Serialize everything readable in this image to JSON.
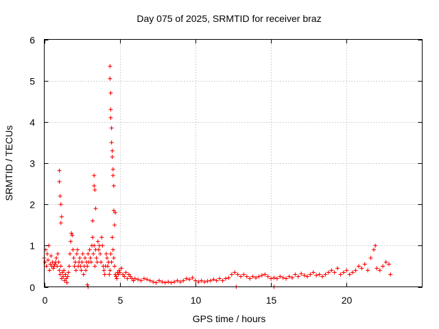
{
  "chart_data": {
    "type": "scatter",
    "title": "Day 075 of 2025, SRMTID for receiver braz",
    "xlabel": "GPS time / hours",
    "ylabel": "SRMTID / TECUs",
    "xlim": [
      0,
      25
    ],
    "ylim": [
      0,
      6
    ],
    "xticks": [
      0,
      5,
      10,
      15,
      20
    ],
    "yticks": [
      0,
      1,
      2,
      3,
      4,
      5,
      6
    ],
    "xtick_labels": [
      "0",
      "5",
      "10",
      "15",
      "20"
    ],
    "ytick_labels": [
      "0",
      "1",
      "2",
      "3",
      "4",
      "5",
      "6"
    ],
    "grid": true,
    "marker": "+",
    "series": [
      {
        "name": "braz",
        "color": "#ff0000",
        "x": [
          0.0,
          0.05,
          0.1,
          0.15,
          0.2,
          0.25,
          0.3,
          0.35,
          0.4,
          0.45,
          0.5,
          0.55,
          0.6,
          0.65,
          0.7,
          0.75,
          0.8,
          0.85,
          0.9,
          0.95,
          1.0,
          1.05,
          1.1,
          1.15,
          1.2,
          1.25,
          1.3,
          1.35,
          1.4,
          1.45,
          1.5,
          1.55,
          1.6,
          1.65,
          1.7,
          1.75,
          1.8,
          1.85,
          1.9,
          1.95,
          2.0,
          2.05,
          2.1,
          2.15,
          2.2,
          2.25,
          2.3,
          2.35,
          2.4,
          2.45,
          2.5,
          2.55,
          2.6,
          2.65,
          2.7,
          2.75,
          2.8,
          2.85,
          2.9,
          2.95,
          3.0,
          3.05,
          3.1,
          3.15,
          3.2,
          3.25,
          3.3,
          3.35,
          3.4,
          3.45,
          3.5,
          3.55,
          3.6,
          3.65,
          3.7,
          3.75,
          3.8,
          3.85,
          3.9,
          3.95,
          4.0,
          4.05,
          4.1,
          4.15,
          4.2,
          4.25,
          4.3,
          4.35,
          4.4,
          4.45,
          4.5,
          4.55,
          4.6,
          4.65,
          4.7,
          4.75,
          4.8,
          4.85,
          4.9,
          4.95,
          5.0,
          5.1,
          5.2,
          5.3,
          5.4,
          5.5,
          5.6,
          5.7,
          5.8,
          5.9,
          6.0,
          6.2,
          6.4,
          6.6,
          6.8,
          7.0,
          7.2,
          7.4,
          7.6,
          7.8,
          8.0,
          8.2,
          8.4,
          8.6,
          8.8,
          9.0,
          9.2,
          9.4,
          9.6,
          9.8,
          10.0,
          10.2,
          10.4,
          10.6,
          10.8,
          11.0,
          11.2,
          11.4,
          11.6,
          11.8,
          12.0,
          12.2,
          12.4,
          12.6,
          12.8,
          13.0,
          13.2,
          13.4,
          13.6,
          13.8,
          14.0,
          14.2,
          14.4,
          14.6,
          14.8,
          15.0,
          15.2,
          15.4,
          15.6,
          15.8,
          16.0,
          16.2,
          16.4,
          16.6,
          16.8,
          17.0,
          17.2,
          17.4,
          17.6,
          17.8,
          18.0,
          18.2,
          18.4,
          18.6,
          18.8,
          19.0,
          19.2,
          19.4,
          19.6,
          19.8,
          20.0,
          20.2,
          20.4,
          20.6,
          20.8,
          21.0,
          21.2,
          21.4,
          21.6,
          21.8,
          21.9,
          22.0,
          22.2,
          22.4,
          22.6,
          22.8,
          22.9,
          1.0,
          1.0,
          1.05,
          1.1,
          1.1,
          1.15,
          3.3,
          3.3,
          3.35,
          3.4,
          3.2,
          4.35,
          4.35,
          4.4,
          4.4,
          4.4,
          4.45,
          4.45,
          4.5,
          4.5,
          4.55,
          4.55,
          4.6,
          4.6,
          4.65,
          4.7,
          2.9,
          2.85,
          12.7,
          15.2
        ],
        "y": [
          0.7,
          0.6,
          0.9,
          0.5,
          0.8,
          0.65,
          1.0,
          0.4,
          0.55,
          0.75,
          0.5,
          0.6,
          0.45,
          0.5,
          0.55,
          0.6,
          0.7,
          0.5,
          0.8,
          0.6,
          0.4,
          0.3,
          0.5,
          0.2,
          0.35,
          0.25,
          0.4,
          0.15,
          0.3,
          0.2,
          0.1,
          0.25,
          0.35,
          0.5,
          0.8,
          1.1,
          1.3,
          1.25,
          0.9,
          0.7,
          0.5,
          0.6,
          0.4,
          0.8,
          0.9,
          0.5,
          0.6,
          0.7,
          0.5,
          0.4,
          0.6,
          0.8,
          0.3,
          0.5,
          0.7,
          0.4,
          0.6,
          0.5,
          0.8,
          0.6,
          0.9,
          0.7,
          0.6,
          1.0,
          1.2,
          0.8,
          1.0,
          0.5,
          0.9,
          0.7,
          0.6,
          1.1,
          0.9,
          1.0,
          0.8,
          0.6,
          1.2,
          1.0,
          0.5,
          0.4,
          0.3,
          0.5,
          0.8,
          0.7,
          0.5,
          0.6,
          0.3,
          0.4,
          0.8,
          0.6,
          1.2,
          0.9,
          0.7,
          0.5,
          0.3,
          0.25,
          0.2,
          0.35,
          0.3,
          0.4,
          0.35,
          0.45,
          0.3,
          0.25,
          0.35,
          0.2,
          0.3,
          0.25,
          0.2,
          0.15,
          0.2,
          0.18,
          0.15,
          0.2,
          0.18,
          0.15,
          0.12,
          0.1,
          0.15,
          0.12,
          0.1,
          0.12,
          0.1,
          0.12,
          0.15,
          0.12,
          0.15,
          0.2,
          0.18,
          0.22,
          0.15,
          0.12,
          0.15,
          0.12,
          0.14,
          0.15,
          0.18,
          0.15,
          0.2,
          0.15,
          0.2,
          0.22,
          0.3,
          0.35,
          0.3,
          0.25,
          0.3,
          0.25,
          0.2,
          0.25,
          0.22,
          0.25,
          0.28,
          0.3,
          0.25,
          0.2,
          0.22,
          0.2,
          0.25,
          0.22,
          0.2,
          0.25,
          0.22,
          0.3,
          0.25,
          0.32,
          0.28,
          0.25,
          0.3,
          0.35,
          0.28,
          0.3,
          0.25,
          0.3,
          0.35,
          0.4,
          0.35,
          0.45,
          0.3,
          0.35,
          0.4,
          0.3,
          0.35,
          0.4,
          0.5,
          0.45,
          0.55,
          0.4,
          0.7,
          0.9,
          1.0,
          0.45,
          0.4,
          0.5,
          0.6,
          0.55,
          0.3,
          2.82,
          2.55,
          2.2,
          2.0,
          1.55,
          1.7,
          2.7,
          2.45,
          2.35,
          1.9,
          1.6,
          5.35,
          5.05,
          4.7,
          4.3,
          4.1,
          3.85,
          3.5,
          3.3,
          3.15,
          2.85,
          2.7,
          2.45,
          1.85,
          1.5,
          1.8,
          0.0,
          0.05,
          0.0,
          0.0
        ]
      }
    ]
  }
}
